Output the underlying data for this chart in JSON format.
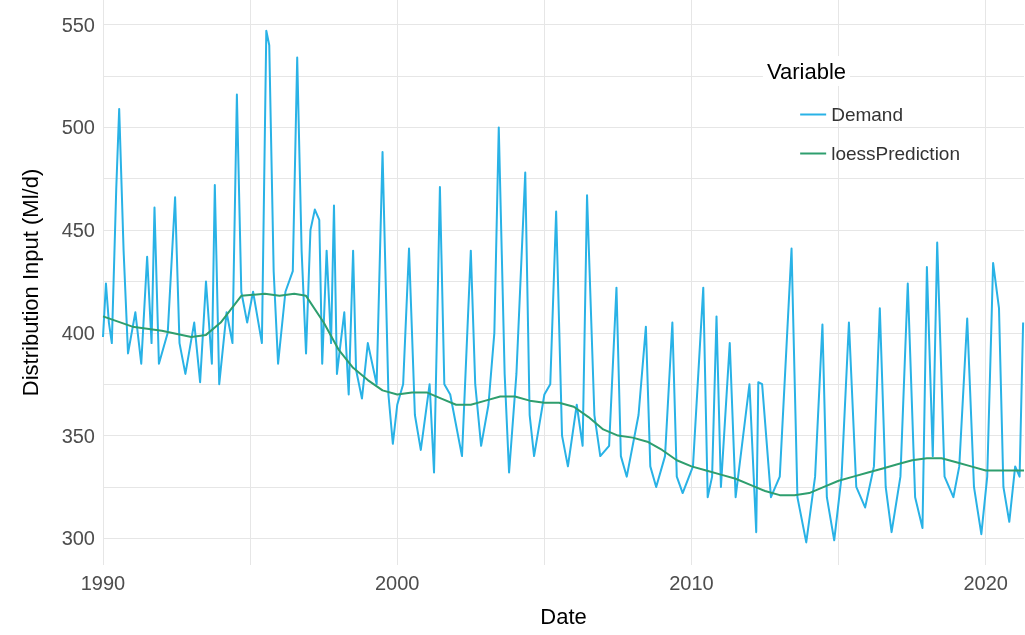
{
  "chart_data": {
    "type": "line",
    "xlabel": "Date",
    "ylabel": "Distribution Input (Ml/d)",
    "legend_title": "Variable",
    "legend": "top right",
    "grid": true,
    "xlim": [
      1990,
      2021.3
    ],
    "xticks": [
      1990,
      {
        "value": 1995,
        "label": null
      },
      2000,
      {
        "value": 2005,
        "label": null
      },
      2010,
      {
        "value": 2015,
        "label": null
      },
      2020
    ],
    "ylim": [
      287,
      562
    ],
    "yticks": [
      300,
      {
        "value": 325,
        "label": null
      },
      350,
      {
        "value": 375,
        "label": null
      },
      400,
      {
        "value": 425,
        "label": null
      },
      450,
      {
        "value": 475,
        "label": null
      },
      500,
      {
        "value": 525,
        "label": null
      },
      550
    ],
    "series": [
      {
        "name": "Demand",
        "color": "#29b2e6",
        "x": [
          1990.0,
          1990.1,
          1990.2,
          1990.3,
          1990.45,
          1990.55,
          1990.7,
          1990.85,
          1991.1,
          1991.3,
          1991.5,
          1991.65,
          1991.75,
          1991.9,
          1992.2,
          1992.45,
          1992.6,
          1992.8,
          1993.1,
          1993.3,
          1993.5,
          1993.7,
          1993.8,
          1993.95,
          1994.2,
          1994.4,
          1994.55,
          1994.7,
          1994.9,
          1995.1,
          1995.4,
          1995.55,
          1995.65,
          1995.8,
          1995.95,
          1996.2,
          1996.45,
          1996.6,
          1996.75,
          1996.9,
          1997.05,
          1997.2,
          1997.35,
          1997.45,
          1997.6,
          1997.75,
          1997.85,
          1997.95,
          1998.2,
          1998.35,
          1998.5,
          1998.6,
          1998.8,
          1999.0,
          1999.3,
          1999.5,
          1999.7,
          1999.85,
          2000.0,
          2000.2,
          2000.4,
          2000.6,
          2000.8,
          2001.1,
          2001.25,
          2001.35,
          2001.45,
          2001.6,
          2001.8,
          2002.0,
          2002.2,
          2002.5,
          2002.65,
          2002.85,
          2003.1,
          2003.3,
          2003.45,
          2003.65,
          2003.8,
          2004.05,
          2004.35,
          2004.5,
          2004.65,
          2005.0,
          2005.2,
          2005.4,
          2005.6,
          2005.8,
          2006.1,
          2006.3,
          2006.45,
          2006.7,
          2006.9,
          2007.2,
          2007.45,
          2007.6,
          2007.8,
          2008.2,
          2008.45,
          2008.6,
          2008.8,
          2009.1,
          2009.35,
          2009.5,
          2009.7,
          2010.05,
          2010.4,
          2010.55,
          2010.7,
          2010.85,
          2011.0,
          2011.3,
          2011.5,
          2011.97,
          2012.2,
          2012.27,
          2012.4,
          2012.7,
          2013.0,
          2013.4,
          2013.6,
          2013.9,
          2014.2,
          2014.45,
          2014.6,
          2014.85,
          2015.1,
          2015.35,
          2015.6,
          2015.9,
          2016.2,
          2016.4,
          2016.6,
          2016.8,
          2017.1,
          2017.35,
          2017.6,
          2017.85,
          2018.0,
          2018.2,
          2018.35,
          2018.6,
          2018.9,
          2019.1,
          2019.37,
          2019.6,
          2019.85,
          2020.05,
          2020.25,
          2020.45,
          2020.6,
          2020.8,
          2021.0,
          2021.15,
          2021.27
        ],
        "values": [
          398,
          424,
          405,
          395,
          470,
          509,
          440,
          390,
          410,
          385,
          437,
          395,
          461,
          385,
          400,
          466,
          395,
          380,
          405,
          376,
          425,
          385,
          472,
          375,
          410,
          395,
          516,
          420,
          405,
          420,
          395,
          547,
          540,
          430,
          385,
          420,
          430,
          534,
          440,
          390,
          450,
          460,
          455,
          385,
          440,
          395,
          462,
          380,
          410,
          370,
          440,
          382,
          368,
          395,
          375,
          488,
          370,
          346,
          365,
          375,
          441,
          360,
          343,
          375,
          332,
          400,
          471,
          375,
          370,
          355,
          340,
          440,
          375,
          345,
          365,
          400,
          500,
          380,
          332,
          380,
          478,
          360,
          340,
          370,
          375,
          459,
          350,
          335,
          365,
          345,
          467,
          360,
          340,
          345,
          422,
          340,
          330,
          360,
          403,
          335,
          325,
          340,
          405,
          330,
          322,
          335,
          422,
          320,
          330,
          408,
          325,
          395,
          320,
          375,
          303,
          376,
          375,
          320,
          330,
          441,
          320,
          298,
          330,
          404,
          320,
          299,
          330,
          405,
          325,
          315,
          335,
          412,
          325,
          303,
          330,
          424,
          320,
          305,
          432,
          340,
          444,
          330,
          320,
          335,
          407,
          325,
          302,
          330,
          434,
          412,
          325,
          308,
          335,
          330,
          405
        ]
      },
      {
        "name": "loessPrediction",
        "color": "#2e9e6e",
        "x": [
          1990,
          1991,
          1992,
          1993,
          1993.5,
          1994,
          1994.7,
          1995.5,
          1996,
          1996.5,
          1996.9,
          1997.5,
          1998,
          1998.5,
          1999,
          1999.5,
          2000,
          2000.5,
          2001,
          2001.5,
          2002,
          2002.5,
          2003,
          2003.5,
          2004,
          2004.5,
          2005,
          2005.5,
          2006,
          2006.5,
          2007,
          2007.5,
          2008,
          2008.5,
          2009,
          2009.5,
          2010,
          2010.5,
          2011,
          2011.5,
          2012,
          2012.5,
          2013,
          2013.5,
          2014,
          2014.5,
          2015,
          2015.5,
          2016,
          2016.5,
          2017,
          2017.5,
          2018,
          2018.5,
          2019,
          2019.5,
          2020,
          2020.5,
          2021,
          2021.3
        ],
        "values": [
          408,
          403,
          401,
          398,
          399,
          405,
          418,
          419,
          418,
          419,
          418,
          405,
          392,
          383,
          377,
          372,
          370,
          371,
          371,
          368,
          365,
          365,
          367,
          369,
          369,
          367,
          366,
          366,
          364,
          359,
          353,
          350,
          349,
          347,
          343,
          338,
          335,
          333,
          331,
          329,
          326,
          323,
          321,
          321,
          322,
          325,
          328,
          330,
          332,
          334,
          336,
          338,
          339,
          339,
          337,
          335,
          333,
          333,
          333,
          333
        ]
      }
    ]
  }
}
